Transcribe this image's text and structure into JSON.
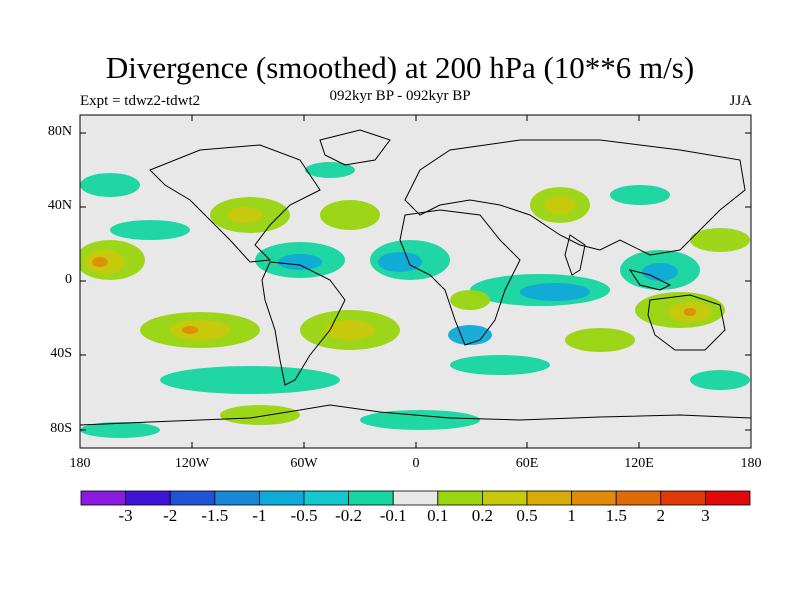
{
  "title": "Divergence (smoothed) at 200 hPa (10**6 m/s)",
  "subtitle_center": "092kyr BP - 092kyr BP",
  "subtitle_left": "Expt = tdwz2-tdwt2",
  "subtitle_right": "JJA",
  "lat_labels": [
    "80N",
    "40N",
    "0",
    "40S",
    "80S"
  ],
  "lon_labels": [
    "180",
    "120W",
    "60W",
    "0",
    "60E",
    "120E",
    "180"
  ],
  "colorbar": {
    "colors": [
      "#8a1be0",
      "#3f14d6",
      "#1f55d4",
      "#1a86d6",
      "#10aad8",
      "#14c8d0",
      "#16d6a0",
      "#e8e8e8",
      "#9ad60e",
      "#c8c80c",
      "#d8ac08",
      "#e08a08",
      "#e06a08",
      "#e03a08",
      "#e00a0a"
    ],
    "labels": [
      "-3",
      "-2",
      "-1.5",
      "-1",
      "-0.5",
      "-0.2",
      "-0.1",
      "0.1",
      "0.2",
      "0.5",
      "1",
      "1.5",
      "2",
      "3"
    ]
  },
  "map_colors": {
    "background": "#e8e8e8",
    "land_outline": "#000000"
  }
}
